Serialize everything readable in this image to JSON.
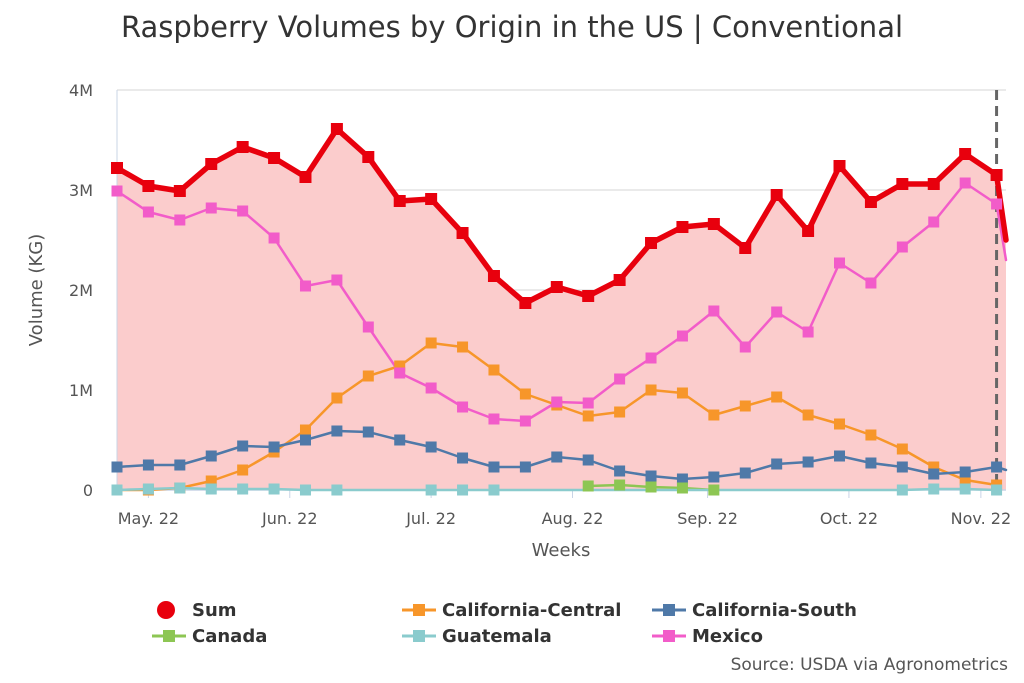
{
  "chart_data": {
    "type": "line",
    "title": "Raspberry Volumes by Origin in the US | Conventional",
    "xlabel": "Weeks",
    "ylabel": "Volume (KG)",
    "ylim": [
      0,
      4000000
    ],
    "y_ticks": [
      "0",
      "1M",
      "2M",
      "3M",
      "4M"
    ],
    "x_tick_labels": [
      "May. 22",
      "Jun. 22",
      "Jul. 22",
      "Aug. 22",
      "Sep. 22",
      "Oct. 22",
      "Nov. 22"
    ],
    "x_tick_weeks": [
      1,
      5.5,
      10,
      14.5,
      18.8,
      23.3,
      27.5
    ],
    "x_start_week": 0,
    "x_end_week": 28.3,
    "current_marker_week": 28,
    "grid": true,
    "legend_position": "bottom",
    "series": [
      {
        "name": "Sum",
        "color": "#e8000d",
        "filled": true,
        "marker": "square",
        "x": [
          0,
          1,
          2,
          3,
          4,
          5,
          6,
          7,
          8,
          9,
          10,
          11,
          12,
          13,
          14,
          15,
          16,
          17,
          18,
          19,
          20,
          21,
          22,
          23,
          24,
          25,
          26,
          27,
          28,
          28.3
        ],
        "values": [
          3220000,
          3040000,
          2990000,
          3260000,
          3430000,
          3320000,
          3130000,
          3610000,
          3330000,
          2890000,
          2910000,
          2570000,
          2140000,
          1870000,
          2030000,
          1940000,
          2100000,
          2470000,
          2630000,
          2660000,
          2420000,
          2950000,
          2590000,
          3240000,
          2880000,
          3060000,
          3060000,
          3360000,
          3150000,
          2500000
        ]
      },
      {
        "name": "California-Central",
        "color": "#f7962a",
        "filled": false,
        "marker": "square",
        "x": [
          0,
          1,
          2,
          3,
          4,
          5,
          6,
          7,
          8,
          9,
          10,
          11,
          12,
          13,
          14,
          15,
          16,
          17,
          18,
          19,
          20,
          21,
          22,
          23,
          24,
          25,
          26,
          27,
          28
        ],
        "values": [
          0,
          0,
          20000,
          90000,
          200000,
          380000,
          600000,
          920000,
          1140000,
          1240000,
          1470000,
          1430000,
          1200000,
          960000,
          850000,
          740000,
          780000,
          1000000,
          970000,
          750000,
          840000,
          930000,
          750000,
          660000,
          550000,
          410000,
          230000,
          100000,
          50000
        ]
      },
      {
        "name": "California-South",
        "color": "#4f79a8",
        "filled": false,
        "marker": "square",
        "x": [
          0,
          1,
          2,
          3,
          4,
          5,
          6,
          7,
          8,
          9,
          10,
          11,
          12,
          13,
          14,
          15,
          16,
          17,
          18,
          19,
          20,
          21,
          22,
          23,
          24,
          25,
          26,
          27,
          28,
          28.3
        ],
        "values": [
          230000,
          250000,
          250000,
          340000,
          440000,
          430000,
          500000,
          590000,
          580000,
          500000,
          430000,
          320000,
          230000,
          230000,
          330000,
          300000,
          190000,
          140000,
          110000,
          130000,
          170000,
          260000,
          280000,
          340000,
          270000,
          230000,
          160000,
          180000,
          230000,
          200000
        ]
      },
      {
        "name": "Canada",
        "color": "#8dc653",
        "filled": false,
        "marker": "square",
        "x": [
          15,
          16,
          17,
          18,
          19
        ],
        "values": [
          40000,
          50000,
          30000,
          20000,
          0
        ]
      },
      {
        "name": "Guatemala",
        "color": "#8acbcd",
        "filled": false,
        "marker": "square",
        "x": [
          0,
          1,
          2,
          3,
          4,
          5,
          6,
          7,
          10,
          11,
          12,
          25,
          26,
          27,
          28
        ],
        "values": [
          0,
          10000,
          20000,
          10000,
          10000,
          10000,
          0,
          0,
          0,
          0,
          0,
          0,
          10000,
          10000,
          0
        ]
      },
      {
        "name": "Mexico",
        "color": "#f25cc9",
        "filled": false,
        "marker": "square",
        "x": [
          0,
          1,
          2,
          3,
          4,
          5,
          6,
          7,
          8,
          9,
          10,
          11,
          12,
          13,
          14,
          15,
          16,
          17,
          18,
          19,
          20,
          21,
          22,
          23,
          24,
          25,
          26,
          27,
          28,
          28.3
        ],
        "values": [
          2990000,
          2780000,
          2700000,
          2820000,
          2790000,
          2520000,
          2040000,
          2100000,
          1630000,
          1170000,
          1020000,
          830000,
          710000,
          690000,
          880000,
          870000,
          1110000,
          1320000,
          1540000,
          1790000,
          1430000,
          1780000,
          1580000,
          2270000,
          2070000,
          2430000,
          2680000,
          3070000,
          2860000,
          2300000
        ]
      }
    ]
  },
  "legend": {
    "sum": "Sum",
    "california_central": "California-Central",
    "california_south": "California-South",
    "canada": "Canada",
    "guatemala": "Guatemala",
    "mexico": "Mexico"
  },
  "source": "Source: USDA via Agronometrics"
}
